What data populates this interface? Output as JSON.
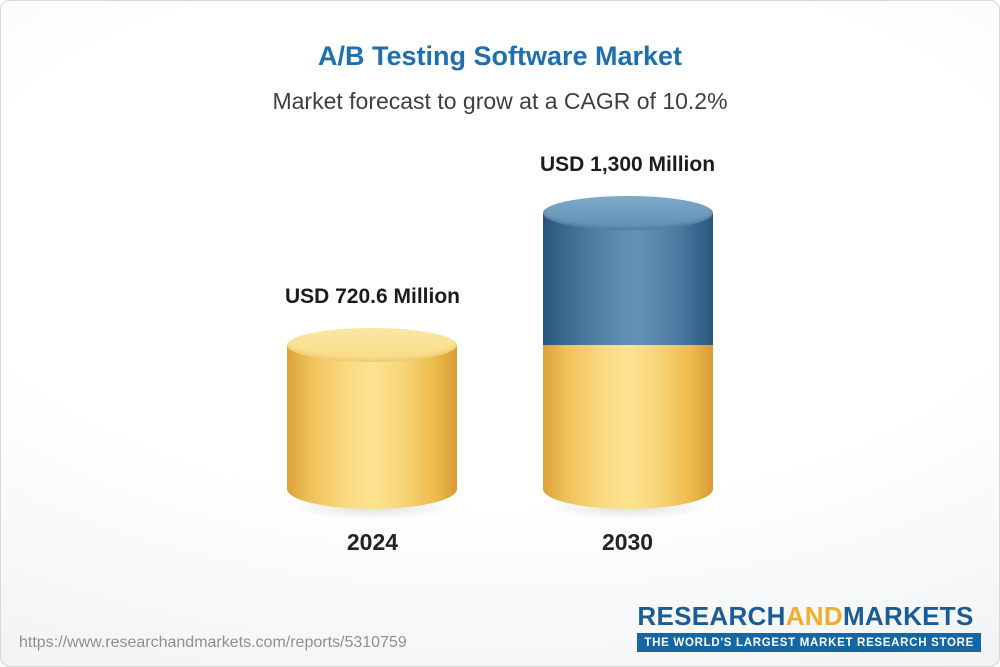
{
  "page": {
    "title": "A/B Testing Software Market",
    "subtitle": "Market forecast to grow at a CAGR of 10.2%"
  },
  "chart_data": {
    "type": "bar",
    "title": "A/B Testing Software Market",
    "subtitle": "Market forecast to grow at a CAGR of 10.2%",
    "unit": "USD Million",
    "categories": [
      "2024",
      "2030"
    ],
    "values": [
      720.6,
      1300
    ],
    "value_labels": [
      "USD 720.6 Million",
      "USD 1,300 Million"
    ],
    "series_note": "2030 bar shows 720.6 base in gold plus growth to 1300 in blue",
    "colors": {
      "title_blue": "#1d6fae",
      "bar_gold": "#f6cd63",
      "bar_blue": "#4a7aa1"
    },
    "legend_position": "none",
    "grid": false
  },
  "footer": {
    "url": "https://www.researchandmarkets.com/reports/5310759",
    "logo": {
      "research": "RESEARCH",
      "and": "AND",
      "markets": "MARKETS",
      "tagline": "THE WORLD'S LARGEST MARKET RESEARCH STORE"
    }
  }
}
